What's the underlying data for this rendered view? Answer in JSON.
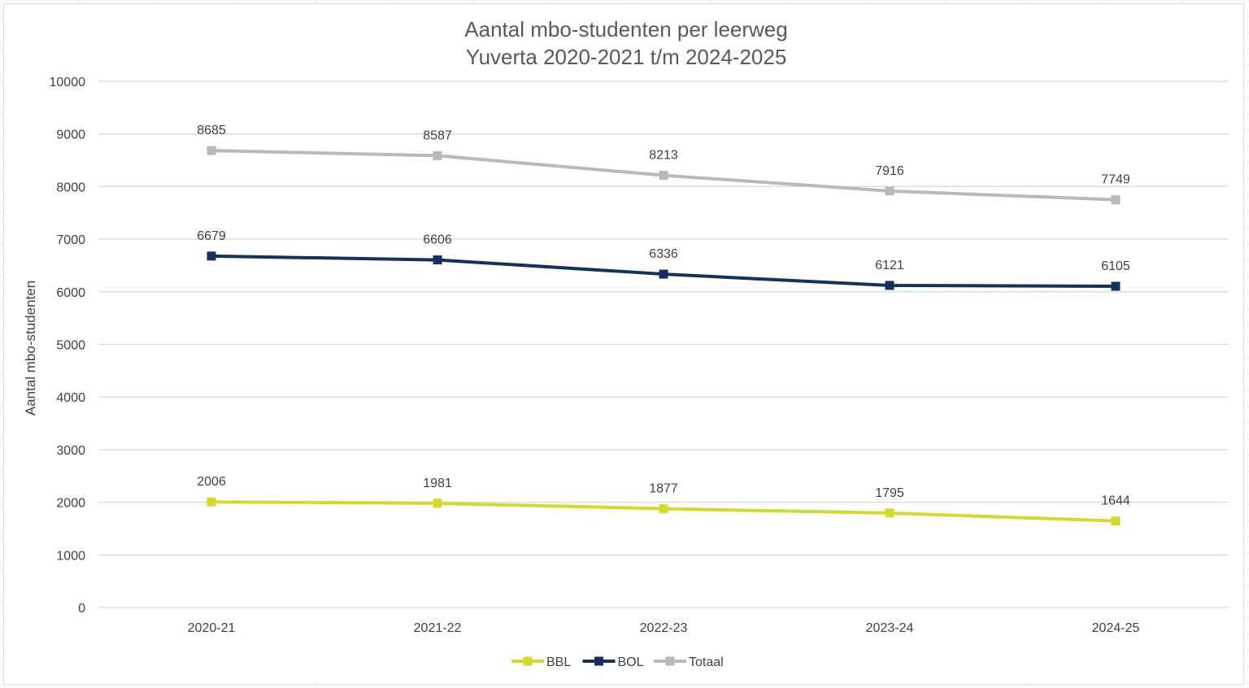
{
  "chart_data": {
    "type": "line",
    "title": [
      "Aantal mbo-studenten per leerweg",
      "Yuverta 2020-2021 t/m 2024-2025"
    ],
    "xlabel": "",
    "ylabel": "Aantal mbo-studenten",
    "categories": [
      "2020-21",
      "2021-22",
      "2022-23",
      "2023-24",
      "2024-25"
    ],
    "ylim": [
      0,
      10000
    ],
    "yticks": [
      0,
      1000,
      2000,
      3000,
      4000,
      5000,
      6000,
      7000,
      8000,
      9000,
      10000
    ],
    "grid": true,
    "legend": "bottom-center",
    "series": [
      {
        "name": "BBL",
        "color": "#d4d92a",
        "values": [
          2006,
          1981,
          1877,
          1795,
          1644
        ]
      },
      {
        "name": "BOL",
        "color": "#14305e",
        "values": [
          6679,
          6606,
          6336,
          6121,
          6105
        ]
      },
      {
        "name": "Totaal",
        "color": "#b7b9be",
        "values": [
          8685,
          8587,
          8213,
          7916,
          7749
        ]
      }
    ]
  }
}
